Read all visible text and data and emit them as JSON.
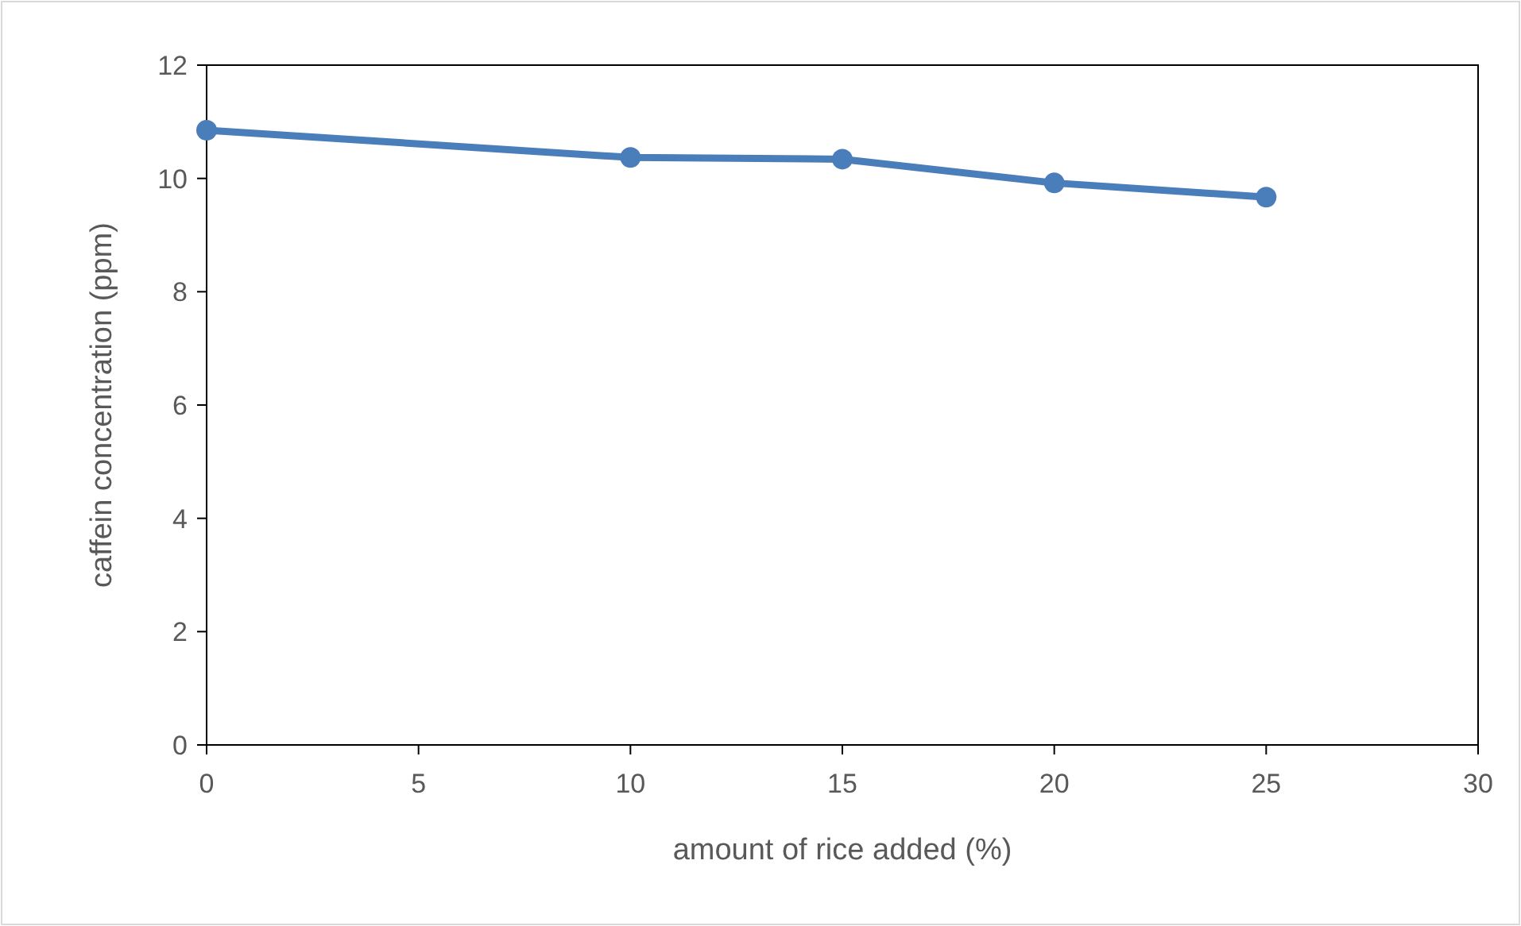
{
  "chart_data": {
    "type": "line",
    "xlabel": "amount of rice added (%)",
    "ylabel": "caffein concentration (ppm)",
    "x": [
      0,
      10,
      15,
      20,
      25
    ],
    "series": [
      {
        "color": "#4a7ebb",
        "values": [
          10.85,
          10.37,
          10.34,
          9.92,
          9.67
        ]
      }
    ],
    "xlim": [
      0,
      30
    ],
    "xticks": [
      0,
      5,
      10,
      15,
      20,
      25,
      30
    ],
    "ylim": [
      0,
      12
    ],
    "yticks": [
      0,
      2,
      4,
      6,
      8,
      10,
      12
    ],
    "marker": "circle",
    "line_style": "solid",
    "grid": false
  }
}
